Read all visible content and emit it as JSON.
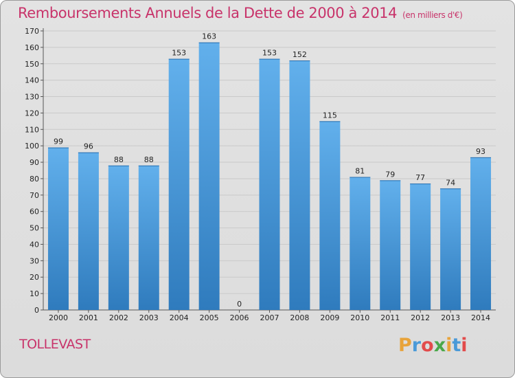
{
  "header": {
    "title": "Remboursements Annuels de la Dette de 2000 à 2014",
    "subtitle": "(en milliers d'€)"
  },
  "footer": {
    "town": "TOLLEVAST",
    "logo_letters": [
      "P",
      "r",
      "o",
      "x",
      "i",
      "t",
      "i"
    ],
    "logo_colors": [
      "#e8a33a",
      "#4a9ad8",
      "#e24b4b",
      "#4aa84a",
      "#e8a33a",
      "#4a9ad8",
      "#e24b4b"
    ]
  },
  "chart_data": {
    "type": "bar",
    "title": "Remboursements Annuels de la Dette de 2000 à 2014",
    "subtitle": "(en milliers d'€)",
    "categories": [
      "2000",
      "2001",
      "2002",
      "2003",
      "2004",
      "2005",
      "2006",
      "2007",
      "2008",
      "2009",
      "2010",
      "2011",
      "2012",
      "2013",
      "2014"
    ],
    "values": [
      99,
      96,
      88,
      88,
      153,
      163,
      0,
      153,
      152,
      115,
      81,
      79,
      77,
      74,
      93
    ],
    "ylim": [
      0,
      170
    ],
    "yticks": [
      0,
      10,
      20,
      30,
      40,
      50,
      60,
      70,
      80,
      90,
      100,
      110,
      120,
      130,
      140,
      150,
      160,
      170
    ],
    "grid": true,
    "bar_color_top": "#62b0ec",
    "bar_color_bottom": "#2f7bbd"
  }
}
